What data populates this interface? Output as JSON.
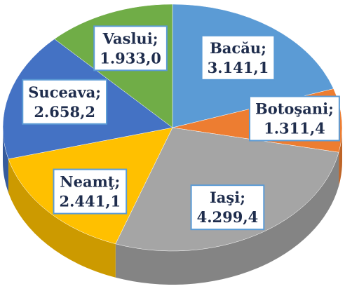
{
  "chart_data": {
    "type": "pie",
    "categories": [
      "Bacău",
      "Botoşani",
      "Iaşi",
      "Neamţ",
      "Suceava",
      "Vaslui"
    ],
    "label_separator": ";",
    "values": [
      3141.1,
      1311.4,
      4299.4,
      2441.1,
      2658.2,
      1933.0
    ],
    "value_labels": [
      "3.141,1",
      "1.311,4",
      "4.299,4",
      "2.441,1",
      "2.658,2",
      "1.933,0"
    ],
    "colors": [
      "#5b9bd5",
      "#ed7d31",
      "#a5a5a5",
      "#ffc000",
      "#4472c4",
      "#70ad47"
    ]
  }
}
